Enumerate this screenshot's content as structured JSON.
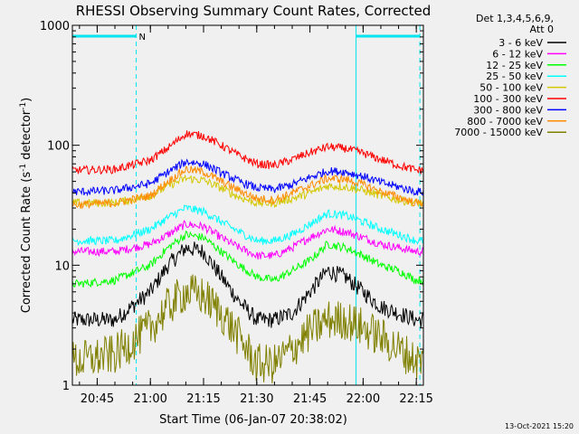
{
  "chart_data": {
    "type": "line",
    "title": "RHESSI Observing Summary Count Rates, Corrected",
    "xlabel": "Start Time (06-Jan-07 20:38:02)",
    "ylabel": "Corrected Count Rate (s⁻¹ detector⁻¹)",
    "ylabel_parts": [
      "Corrected Count Rate (s",
      "-1",
      " detector",
      "-1",
      ")"
    ],
    "y_scale": "log",
    "ylim": [
      1,
      1000
    ],
    "y_ticks": [
      {
        "value": 1,
        "label": "1"
      },
      {
        "value": 10,
        "label": "10"
      },
      {
        "value": 100,
        "label": "100"
      },
      {
        "value": 1000,
        "label": "1000"
      }
    ],
    "xlim": [
      "20:38",
      "22:17"
    ],
    "x_ticks": [
      {
        "value": "20:45",
        "label": "20:45"
      },
      {
        "value": "21:00",
        "label": "21:00"
      },
      {
        "value": "21:15",
        "label": "21:15"
      },
      {
        "value": "21:30",
        "label": "21:30"
      },
      {
        "value": "21:45",
        "label": "21:45"
      },
      {
        "value": "22:00",
        "label": "22:00"
      },
      {
        "value": "22:15",
        "label": "22:15"
      }
    ],
    "legend_header": [
      "Det 1,3,4,5,6,9,",
      "Att 0"
    ],
    "legend_position": "right",
    "night_marker": {
      "label": "N",
      "intervals": [
        [
          "20:38",
          "20:56"
        ],
        [
          "21:58",
          "22:16"
        ]
      ]
    },
    "x": [
      "20:40",
      "20:50",
      "21:00",
      "21:05",
      "21:10",
      "21:15",
      "21:20",
      "21:25",
      "21:30",
      "21:35",
      "21:40",
      "21:45",
      "21:50",
      "21:55",
      "22:00",
      "22:05",
      "22:10",
      "22:15"
    ],
    "series": [
      {
        "name": "3 - 6 keV",
        "color": "#000000",
        "values": [
          3.5,
          3.5,
          6,
          10,
          14,
          13,
          8,
          5,
          3.5,
          3.5,
          4,
          6,
          9,
          8,
          6,
          4.5,
          4,
          3.5
        ]
      },
      {
        "name": "6 - 12 keV",
        "color": "#ff00ff",
        "values": [
          13,
          13,
          15,
          18,
          22,
          21,
          17,
          14,
          12,
          12,
          14,
          17,
          20,
          19,
          17,
          15,
          14,
          13
        ]
      },
      {
        "name": "12 - 25 keV",
        "color": "#00ff00",
        "values": [
          7,
          7.5,
          10,
          14,
          18,
          17,
          13,
          10,
          8,
          7.5,
          9,
          11,
          15,
          14,
          12,
          10,
          9,
          7.5
        ]
      },
      {
        "name": "25 - 50 keV",
        "color": "#00ffff",
        "values": [
          16,
          16,
          20,
          25,
          30,
          28,
          23,
          19,
          16,
          16,
          18,
          22,
          27,
          26,
          23,
          20,
          18,
          16
        ]
      },
      {
        "name": "50 - 100 keV",
        "color": "#d4c800",
        "values": [
          33,
          33,
          38,
          46,
          53,
          51,
          44,
          37,
          33,
          33,
          36,
          40,
          46,
          45,
          42,
          38,
          35,
          33
        ]
      },
      {
        "name": "100 - 300 keV",
        "color": "#ff0000",
        "values": [
          62,
          63,
          75,
          95,
          125,
          120,
          100,
          82,
          70,
          68,
          76,
          87,
          97,
          94,
          86,
          76,
          68,
          62
        ]
      },
      {
        "name": "300 - 800 keV",
        "color": "#0000ff",
        "values": [
          41,
          42,
          48,
          60,
          73,
          70,
          59,
          50,
          44,
          43,
          47,
          54,
          61,
          60,
          55,
          49,
          45,
          41
        ]
      },
      {
        "name": "800 - 7000 keV",
        "color": "#ff8c00",
        "values": [
          32,
          33,
          38,
          50,
          63,
          60,
          50,
          42,
          36,
          35,
          40,
          46,
          53,
          52,
          47,
          41,
          37,
          33
        ]
      },
      {
        "name": "7000 - 15000 keV",
        "color": "#808000",
        "values": [
          1.6,
          1.8,
          3,
          4.5,
          6,
          5.5,
          4,
          2.5,
          1.5,
          1.5,
          2,
          2.8,
          3.5,
          3.5,
          3,
          2.5,
          2,
          1.6
        ]
      }
    ]
  },
  "footer": {
    "timestamp": "13-Oct-2021 15:20"
  }
}
